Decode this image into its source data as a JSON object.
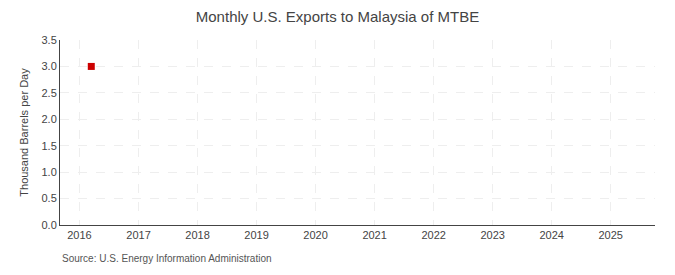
{
  "chart_data": {
    "type": "scatter",
    "title": "Monthly U.S. Exports to Malaysia of MTBE",
    "ylabel": "Thousand Barrels per Day",
    "annotations": [
      "Source: U.S. Energy Information Administration"
    ],
    "x": [
      2016.2
    ],
    "values": [
      3.0
    ],
    "color": "#cc0000",
    "marker": "square",
    "xlim": [
      2015.67,
      2025.75
    ],
    "ylim": [
      0.0,
      3.5
    ],
    "xticks": [
      2016,
      2017,
      2018,
      2019,
      2020,
      2021,
      2022,
      2023,
      2024,
      2025
    ],
    "yticks": [
      {
        "value": 0.0,
        "label": "0.0"
      },
      0.5,
      {
        "value": 1.0,
        "label": "1.0"
      },
      1.5,
      {
        "value": 2.0,
        "label": "2.0"
      },
      2.5,
      {
        "value": 3.0,
        "label": "3.0"
      },
      3.5
    ],
    "grid": true
  }
}
